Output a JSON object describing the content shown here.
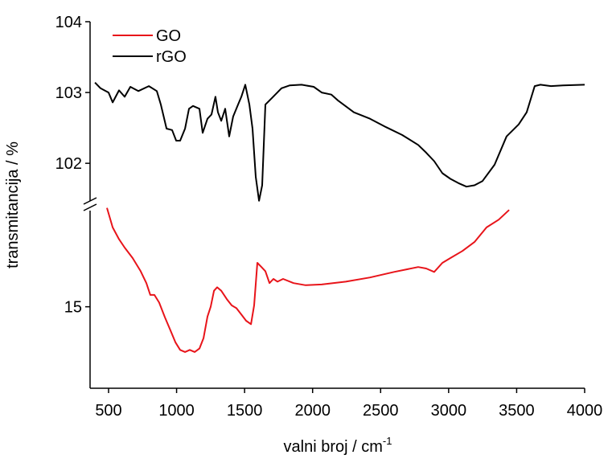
{
  "chart_data": {
    "type": "line",
    "xlabel": "valni broj / cm",
    "xlabel_sup": "-1",
    "ylabel": "transmitancija / %",
    "xlim": [
      364,
      4000
    ],
    "xticks": [
      500,
      1000,
      1500,
      2000,
      2500,
      3000,
      3500,
      4000
    ],
    "ylim": [
      101.4,
      104
    ],
    "yticks": [
      102,
      103,
      104
    ],
    "y2lim": [
      13.83,
      16.45
    ],
    "y2ticks": [
      15
    ],
    "legend": "upper left",
    "broken_axis": true,
    "series": [
      {
        "name": "GO",
        "color": "#e8141a",
        "axis": "y2",
        "x": [
          488,
          530,
          577,
          618,
          677,
          736,
          778,
          807,
          837,
          872,
          914,
          955,
          991,
          1026,
          1062,
          1097,
          1133,
          1168,
          1198,
          1227,
          1251,
          1275,
          1298,
          1328,
          1369,
          1405,
          1440,
          1476,
          1511,
          1547,
          1570,
          1594,
          1624,
          1653,
          1683,
          1712,
          1742,
          1783,
          1860,
          1948,
          2067,
          2244,
          2422,
          2599,
          2776,
          2835,
          2894,
          2954,
          3013,
          3101,
          3190,
          3279,
          3368,
          3445
        ],
        "values": [
          16.42,
          16.14,
          15.97,
          15.85,
          15.7,
          15.51,
          15.34,
          15.17,
          15.17,
          15.06,
          14.85,
          14.66,
          14.49,
          14.38,
          14.35,
          14.38,
          14.35,
          14.4,
          14.55,
          14.86,
          15.0,
          15.23,
          15.28,
          15.23,
          15.11,
          15.02,
          14.98,
          14.89,
          14.8,
          14.75,
          15.02,
          15.63,
          15.57,
          15.51,
          15.34,
          15.4,
          15.36,
          15.4,
          15.34,
          15.31,
          15.32,
          15.36,
          15.42,
          15.5,
          15.57,
          15.55,
          15.5,
          15.63,
          15.7,
          15.8,
          15.93,
          16.14,
          16.25,
          16.39
        ]
      },
      {
        "name": "rGO",
        "color": "#000000",
        "axis": "y",
        "x": [
          400,
          441,
          500,
          530,
          577,
          618,
          660,
          719,
          796,
          855,
          884,
          926,
          967,
          997,
          1026,
          1062,
          1091,
          1121,
          1168,
          1192,
          1227,
          1257,
          1286,
          1304,
          1328,
          1357,
          1387,
          1416,
          1452,
          1476,
          1505,
          1535,
          1558,
          1582,
          1606,
          1629,
          1653,
          1700,
          1771,
          1830,
          1919,
          2008,
          2067,
          2138,
          2185,
          2303,
          2422,
          2540,
          2658,
          2776,
          2835,
          2894,
          2954,
          3013,
          3072,
          3131,
          3190,
          3249,
          3338,
          3426,
          3515,
          3574,
          3633,
          3675,
          3752,
          3840,
          4000
        ],
        "values": [
          103.14,
          103.06,
          103.0,
          102.86,
          103.03,
          102.94,
          103.08,
          103.02,
          103.09,
          103.02,
          102.83,
          102.49,
          102.47,
          102.32,
          102.32,
          102.49,
          102.77,
          102.81,
          102.77,
          102.43,
          102.63,
          102.69,
          102.94,
          102.72,
          102.6,
          102.77,
          102.38,
          102.66,
          102.83,
          102.94,
          103.11,
          102.83,
          102.49,
          101.81,
          101.47,
          101.69,
          102.83,
          102.92,
          103.06,
          103.1,
          103.11,
          103.08,
          103.0,
          102.97,
          102.89,
          102.72,
          102.63,
          102.51,
          102.4,
          102.26,
          102.15,
          102.03,
          101.86,
          101.78,
          101.72,
          101.67,
          101.69,
          101.75,
          101.98,
          102.38,
          102.55,
          102.72,
          103.09,
          103.11,
          103.09,
          103.1,
          103.11
        ]
      }
    ]
  }
}
